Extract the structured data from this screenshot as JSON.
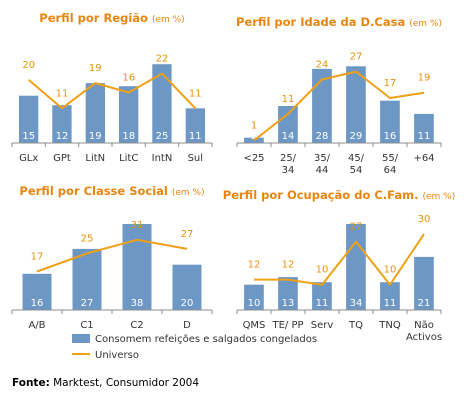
{
  "colors": {
    "bar": "#6d97c4",
    "line": "#f0a015",
    "title": "#e8850f",
    "axis": "#8c8c8c"
  },
  "chart_data": [
    {
      "type": "bar",
      "title": "Perfil por Região",
      "title_unit": "(em %)",
      "categories": [
        [
          "GLx"
        ],
        [
          "GPt"
        ],
        [
          "LitN"
        ],
        [
          "LitC"
        ],
        [
          "IntN"
        ],
        [
          "Sul"
        ]
      ],
      "series": [
        {
          "name": "Consomem refeições e salgados congelados",
          "type": "bar",
          "values": [
            15,
            12,
            19,
            18,
            25,
            11
          ]
        },
        {
          "name": "Universo",
          "type": "line",
          "values": [
            20,
            11,
            19,
            16,
            22,
            11
          ]
        }
      ],
      "ylim": [
        0,
        26
      ]
    },
    {
      "type": "bar",
      "title": "Perfil por Idade da D.Casa",
      "title_unit": "(em %)",
      "categories": [
        [
          "<25"
        ],
        [
          "25/",
          "34"
        ],
        [
          "35/",
          "44"
        ],
        [
          "45/",
          "54"
        ],
        [
          "55/",
          "64"
        ],
        [
          "+64"
        ]
      ],
      "series": [
        {
          "name": "Consomem refeições e salgados congelados",
          "type": "bar",
          "values": [
            2,
            14,
            28,
            29,
            16,
            11
          ]
        },
        {
          "name": "Universo",
          "type": "line",
          "values": [
            1,
            11,
            24,
            27,
            17,
            19
          ]
        }
      ],
      "ylim": [
        0,
        31
      ]
    },
    {
      "type": "bar",
      "title": "Perfil por Classe Social",
      "title_unit": "(em %)",
      "categories": [
        [
          "A/B"
        ],
        [
          "C1"
        ],
        [
          "C2"
        ],
        [
          "D"
        ]
      ],
      "series": [
        {
          "name": "Consomem refeições e salgados congelados",
          "type": "bar",
          "values": [
            16,
            27,
            38,
            20
          ]
        },
        {
          "name": "Universo",
          "type": "line",
          "values": [
            17,
            25,
            31,
            27
          ]
        }
      ],
      "ylim": [
        0,
        38
      ]
    },
    {
      "type": "bar",
      "title": "Perfil por Ocupação do C.Fam.",
      "title_unit": "(em %)",
      "categories": [
        [
          "QMS"
        ],
        [
          "TE/ PP"
        ],
        [
          "Serv"
        ],
        [
          "TQ"
        ],
        [
          "TNQ"
        ],
        [
          "Não",
          "Activos"
        ]
      ],
      "series": [
        {
          "name": "Consomem refeições e salgados congelados",
          "type": "bar",
          "values": [
            10,
            13,
            11,
            34,
            11,
            21
          ]
        },
        {
          "name": "Universo",
          "type": "line",
          "values": [
            12,
            12,
            10,
            27,
            10,
            30
          ]
        }
      ],
      "ylim": [
        0,
        34
      ]
    }
  ],
  "legend": {
    "bar_label": "Consomem refeições e salgados congelados",
    "line_label": "Universo"
  },
  "source": {
    "label": "Fonte:",
    "text": " Marktest, Consumidor 2004"
  }
}
